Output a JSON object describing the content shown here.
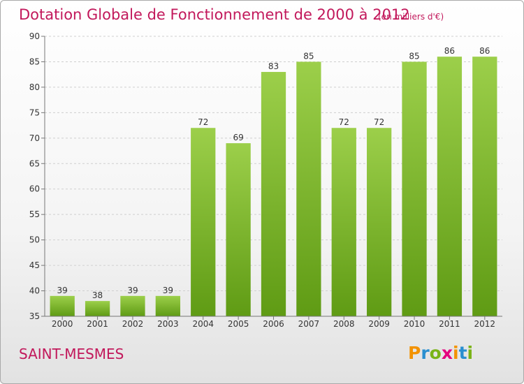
{
  "title": "Dotation Globale de Fonctionnement de 2000 à 2012",
  "subtitle": "(en milliers d'€)",
  "place": "SAINT-MESMES",
  "logo": "Proxiti",
  "colors": {
    "title": "#c2185b",
    "bar_light": "#9ccf4a",
    "bar_dark": "#5f9b14"
  },
  "chart_data": {
    "type": "bar",
    "title": "Dotation Globale de Fonctionnement de 2000 à 2012",
    "subtitle": "(en milliers d'€)",
    "categories": [
      "2000",
      "2001",
      "2002",
      "2003",
      "2004",
      "2005",
      "2006",
      "2007",
      "2008",
      "2009",
      "2010",
      "2011",
      "2012"
    ],
    "values": [
      39,
      38,
      39,
      39,
      72,
      69,
      83,
      85,
      72,
      72,
      85,
      86,
      86
    ],
    "ylim": [
      35,
      90
    ],
    "yticks": [
      35,
      40,
      45,
      50,
      55,
      60,
      65,
      70,
      75,
      80,
      85,
      90
    ],
    "grid": true,
    "data_labels": true
  }
}
